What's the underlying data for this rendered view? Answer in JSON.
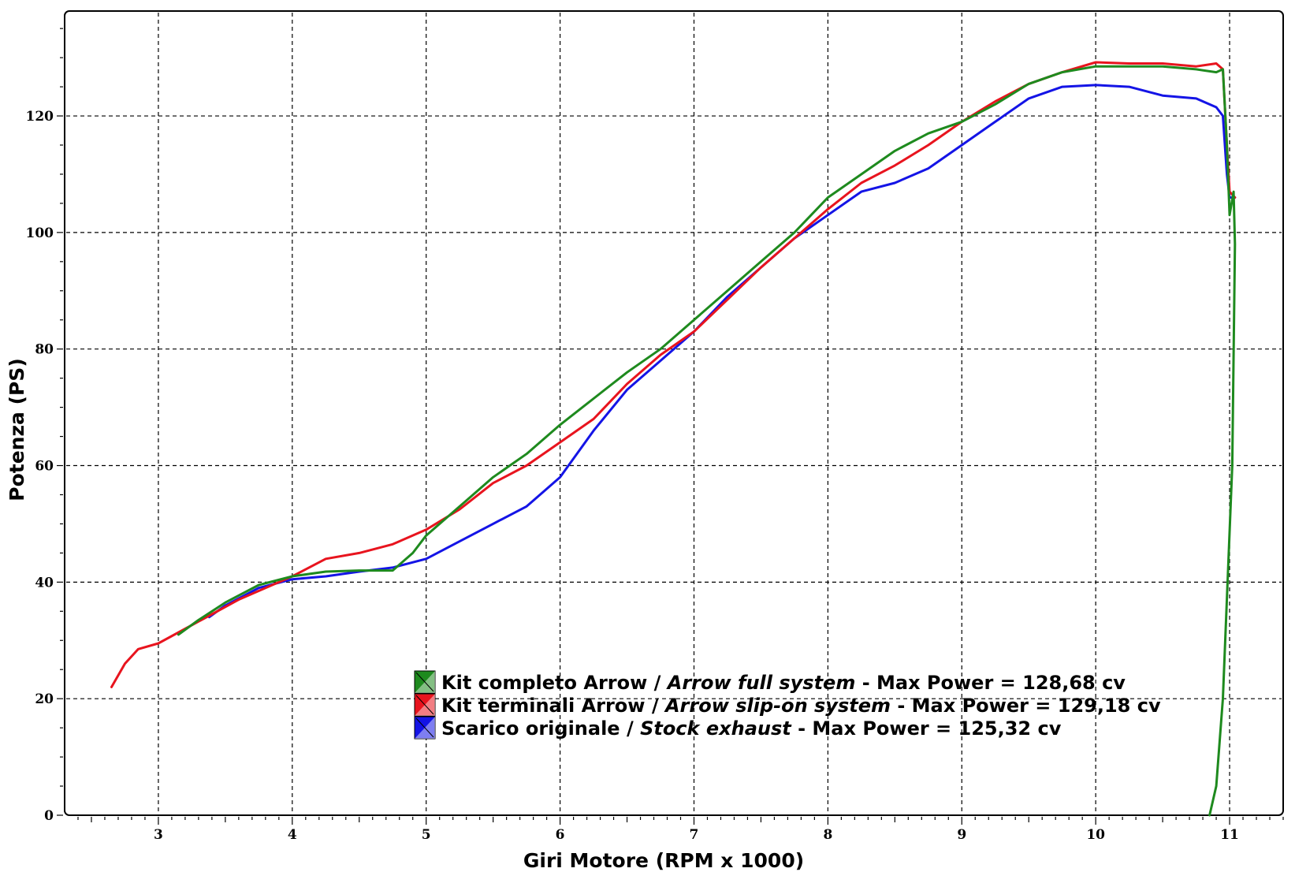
{
  "chart_data": {
    "type": "line",
    "xlabel": "Giri Motore (RPM x 1000)",
    "ylabel": "Potenza (PS)",
    "xlim": [
      2.3,
      11.4
    ],
    "ylim": [
      0,
      138
    ],
    "x_ticks": [
      3,
      4,
      5,
      6,
      7,
      8,
      9,
      10,
      11
    ],
    "y_ticks": [
      0,
      20,
      40,
      60,
      80,
      100,
      120
    ],
    "grid": true,
    "legend_position": "bottom-center",
    "series": [
      {
        "name": "Kit completo Arrow",
        "name_en": "Arrow full system",
        "max_power_label": " - Max Power = 128,68 cv",
        "color": "#1e8a1e",
        "points": [
          [
            3.15,
            31
          ],
          [
            3.3,
            33.5
          ],
          [
            3.5,
            36.5
          ],
          [
            3.75,
            39.5
          ],
          [
            4.0,
            41
          ],
          [
            4.25,
            41.8
          ],
          [
            4.5,
            42
          ],
          [
            4.75,
            42
          ],
          [
            4.9,
            45
          ],
          [
            5.0,
            48
          ],
          [
            5.25,
            53
          ],
          [
            5.5,
            58
          ],
          [
            5.75,
            62
          ],
          [
            6.0,
            67
          ],
          [
            6.25,
            71.5
          ],
          [
            6.5,
            76
          ],
          [
            6.75,
            80
          ],
          [
            7.0,
            85
          ],
          [
            7.25,
            90
          ],
          [
            7.5,
            95
          ],
          [
            7.75,
            100
          ],
          [
            8.0,
            106
          ],
          [
            8.25,
            110
          ],
          [
            8.5,
            114
          ],
          [
            8.75,
            117
          ],
          [
            9.0,
            119
          ],
          [
            9.25,
            122
          ],
          [
            9.5,
            125.5
          ],
          [
            9.75,
            127.5
          ],
          [
            10.0,
            128.5
          ],
          [
            10.25,
            128.5
          ],
          [
            10.5,
            128.5
          ],
          [
            10.75,
            128
          ],
          [
            10.9,
            127.5
          ],
          [
            10.95,
            128
          ],
          [
            10.98,
            115
          ],
          [
            11.0,
            103
          ],
          [
            11.03,
            107
          ],
          [
            11.04,
            98
          ],
          [
            11.02,
            60
          ],
          [
            10.95,
            20
          ],
          [
            10.9,
            5
          ],
          [
            10.85,
            0
          ]
        ]
      },
      {
        "name": "Kit terminali Arrow",
        "name_en": "Arrow slip-on system",
        "max_power_label": " - Max Power = 129,18 cv",
        "color": "#e8141e",
        "points": [
          [
            2.65,
            22
          ],
          [
            2.75,
            26
          ],
          [
            2.85,
            28.5
          ],
          [
            3.0,
            29.5
          ],
          [
            3.2,
            32
          ],
          [
            3.4,
            34.5
          ],
          [
            3.6,
            37
          ],
          [
            3.8,
            39
          ],
          [
            4.0,
            41
          ],
          [
            4.25,
            44
          ],
          [
            4.5,
            45
          ],
          [
            4.75,
            46.5
          ],
          [
            5.0,
            49
          ],
          [
            5.25,
            52.5
          ],
          [
            5.5,
            57
          ],
          [
            5.75,
            60
          ],
          [
            6.0,
            64
          ],
          [
            6.25,
            68
          ],
          [
            6.5,
            74
          ],
          [
            6.75,
            79
          ],
          [
            7.0,
            83
          ],
          [
            7.25,
            88.5
          ],
          [
            7.5,
            94
          ],
          [
            7.75,
            99
          ],
          [
            8.0,
            104
          ],
          [
            8.25,
            108.5
          ],
          [
            8.5,
            111.5
          ],
          [
            8.75,
            115
          ],
          [
            9.0,
            119
          ],
          [
            9.25,
            122.5
          ],
          [
            9.5,
            125.5
          ],
          [
            9.75,
            127.5
          ],
          [
            10.0,
            129.2
          ],
          [
            10.25,
            129
          ],
          [
            10.5,
            129
          ],
          [
            10.75,
            128.5
          ],
          [
            10.9,
            129
          ],
          [
            10.95,
            128
          ],
          [
            10.98,
            115
          ],
          [
            11.0,
            107
          ],
          [
            11.04,
            106
          ]
        ]
      },
      {
        "name": "Scarico originale",
        "name_en": "Stock exhaust",
        "max_power_label": " - Max Power = 125,32 cv",
        "color": "#1414e6",
        "points": [
          [
            3.38,
            34
          ],
          [
            3.5,
            36
          ],
          [
            3.75,
            39
          ],
          [
            4.0,
            40.5
          ],
          [
            4.25,
            41
          ],
          [
            4.5,
            41.8
          ],
          [
            4.75,
            42.5
          ],
          [
            5.0,
            44
          ],
          [
            5.25,
            47
          ],
          [
            5.5,
            50
          ],
          [
            5.75,
            53
          ],
          [
            6.0,
            58
          ],
          [
            6.25,
            66
          ],
          [
            6.5,
            73
          ],
          [
            6.75,
            78
          ],
          [
            7.0,
            83
          ],
          [
            7.25,
            89
          ],
          [
            7.5,
            94
          ],
          [
            7.75,
            99
          ],
          [
            8.0,
            103
          ],
          [
            8.25,
            107
          ],
          [
            8.5,
            108.5
          ],
          [
            8.75,
            111
          ],
          [
            9.0,
            115
          ],
          [
            9.25,
            119
          ],
          [
            9.5,
            123
          ],
          [
            9.75,
            125
          ],
          [
            10.0,
            125.3
          ],
          [
            10.25,
            125
          ],
          [
            10.5,
            123.5
          ],
          [
            10.75,
            123
          ],
          [
            10.9,
            121.5
          ],
          [
            10.95,
            120
          ],
          [
            10.98,
            110
          ],
          [
            11.0,
            106
          ],
          [
            11.04,
            106
          ]
        ]
      }
    ]
  },
  "legend": {
    "separator": " / "
  }
}
